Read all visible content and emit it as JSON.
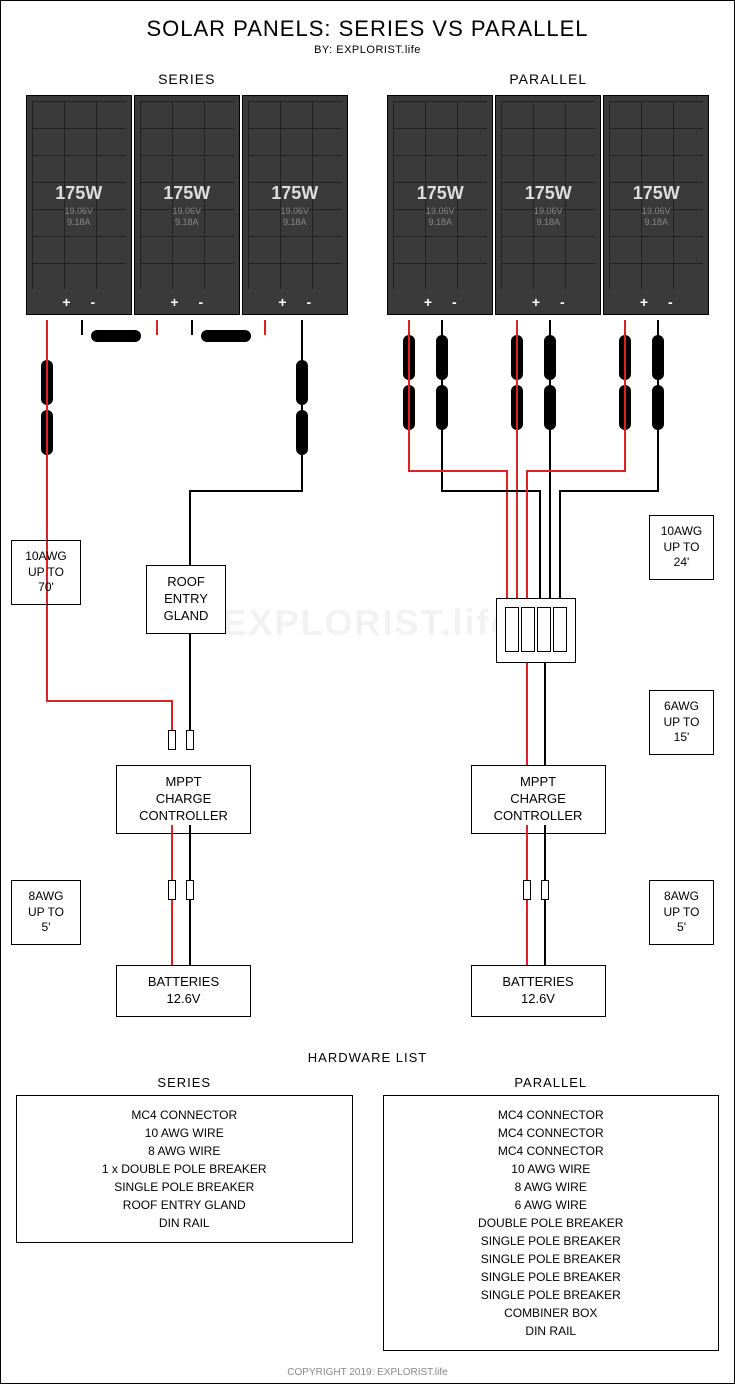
{
  "title": "SOLAR PANELS: SERIES VS PARALLEL",
  "byline": "BY: EXPLORIST.life",
  "copyright": "COPYRIGHT 2019: EXPLORIST.life",
  "watermark": "EXPLORIST.life",
  "columns": {
    "series": {
      "label": "SERIES",
      "panel": {
        "watts": "175W",
        "volts": "19.06V",
        "amps": "9.18A",
        "plus": "+",
        "minus": "-"
      },
      "panel_count": 3,
      "wire_labels": [
        {
          "text": "10AWG\nUP TO\n70'"
        },
        {
          "text": "8AWG\nUP TO\n5'"
        }
      ],
      "components": {
        "roof_entry_gland": "ROOF\nENTRY\nGLAND",
        "mppt": "MPPT\nCHARGE\nCONTROLLER",
        "batteries": "BATTERIES\n12.6V"
      }
    },
    "parallel": {
      "label": "PARALLEL",
      "panel": {
        "watts": "175W",
        "volts": "19.06V",
        "amps": "9.18A",
        "plus": "+",
        "minus": "-"
      },
      "panel_count": 3,
      "wire_labels": [
        {
          "text": "10AWG\nUP TO\n24'"
        },
        {
          "text": "6AWG\nUP TO\n15'"
        },
        {
          "text": "8AWG\nUP TO\n5'"
        }
      ],
      "components": {
        "mppt": "MPPT\nCHARGE\nCONTROLLER",
        "batteries": "BATTERIES\n12.6V"
      }
    }
  },
  "hardware": {
    "title": "HARDWARE LIST",
    "series": {
      "title": "SERIES",
      "items": [
        "MC4 CONNECTOR",
        "10 AWG WIRE",
        "8 AWG WIRE",
        "1 x DOUBLE POLE BREAKER",
        "SINGLE POLE BREAKER",
        "ROOF ENTRY GLAND",
        "DIN RAIL"
      ]
    },
    "parallel": {
      "title": "PARALLEL",
      "items": [
        "MC4 CONNECTOR",
        "MC4 CONNECTOR",
        "MC4 CONNECTOR",
        "10 AWG WIRE",
        "8 AWG WIRE",
        "6 AWG WIRE",
        "DOUBLE POLE BREAKER",
        "SINGLE POLE BREAKER",
        "SINGLE POLE BREAKER",
        "SINGLE POLE BREAKER",
        "SINGLE POLE BREAKER",
        "COMBINER BOX",
        "DIN RAIL"
      ]
    }
  },
  "colors": {
    "wire_positive": "#d22222",
    "wire_negative": "#000000",
    "panel_bg": "#3a3a3a",
    "panel_grid": "#222222",
    "background": "#ffffff",
    "border": "#000000"
  }
}
